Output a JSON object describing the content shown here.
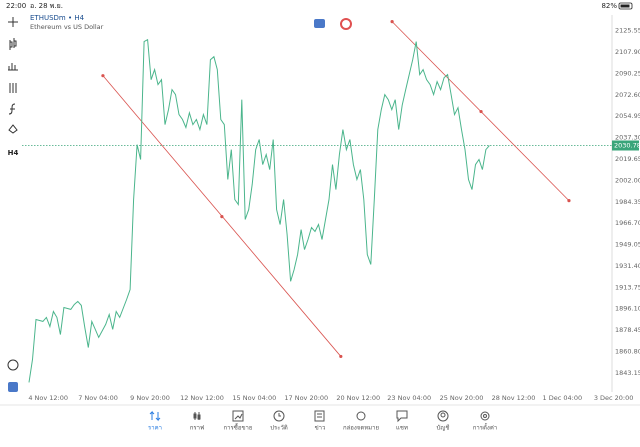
{
  "status_bar": {
    "time": "22:00",
    "date": "อ. 28 พ.ย.",
    "battery": "82%"
  },
  "side_toolbar": {
    "timeframe": "H4"
  },
  "tabs": [
    "ราคา",
    "กราฟ",
    "การซื้อขาย",
    "ประวัติ",
    "ข่าว",
    "กล่องจดหมาย",
    "แชท",
    "บัญชี",
    "การตั้งค่า"
  ],
  "chart_data": {
    "type": "line",
    "title": "ETHUSDm • H4",
    "subtitle": "Ethereum vs US Dollar",
    "x": [
      0,
      1,
      2,
      4,
      5,
      6,
      7,
      8,
      9,
      10,
      12,
      13,
      14,
      15,
      16,
      17,
      18,
      19,
      20,
      22,
      23,
      24,
      25,
      26,
      28,
      29,
      30,
      31,
      32,
      33,
      34,
      35,
      36,
      37,
      38,
      39,
      40,
      41,
      42,
      43,
      44,
      45,
      46,
      47,
      48,
      49,
      50,
      51,
      52,
      53,
      54,
      55,
      56,
      57,
      58,
      59,
      60,
      61,
      62,
      63,
      64,
      65,
      66,
      67,
      68,
      69,
      70,
      71,
      72,
      73,
      74,
      75,
      76,
      77,
      78,
      79,
      80,
      81,
      82,
      83,
      84,
      85,
      86,
      87,
      88,
      89,
      90,
      91,
      92,
      93,
      94,
      95,
      96,
      97,
      98,
      99,
      100,
      101,
      102,
      103,
      104,
      105,
      106,
      107,
      108,
      109,
      110,
      111,
      112,
      113,
      114,
      115,
      116,
      117,
      118,
      119,
      120,
      121,
      122,
      123,
      124,
      125,
      126,
      127,
      128,
      129,
      130,
      131,
      132
    ],
    "series": [
      {
        "name": "ETHUSDm",
        "color": "#4bb58c",
        "values": [
          1835.3,
          1854.2,
          1887.2,
          1885.6,
          1888.9,
          1881.4,
          1893.8,
          1888.9,
          1874.8,
          1897.1,
          1895.5,
          1899.6,
          1902.1,
          1898.8,
          1880.6,
          1864.1,
          1885.6,
          1879.0,
          1872.4,
          1883.1,
          1891.3,
          1879.0,
          1893.8,
          1888.9,
          1903.7,
          1911.9,
          1986.2,
          2031.5,
          2019.2,
          2116.5,
          2118.1,
          2085.1,
          2093.4,
          2081.0,
          2085.1,
          2048.0,
          2060.4,
          2076.9,
          2072.8,
          2056.3,
          2052.2,
          2045.6,
          2057.8,
          2048.0,
          2052.2,
          2043.9,
          2056.3,
          2048.0,
          2101.6,
          2104.1,
          2093.4,
          2052.2,
          2048.0,
          2002.7,
          2027.4,
          1986.2,
          1982.1,
          2068.6,
          1969.7,
          1977.9,
          1998.6,
          2027.4,
          2035.7,
          2015.0,
          2023.3,
          2010.9,
          2035.7,
          1977.9,
          1965.6,
          1986.2,
          1957.3,
          1918.6,
          1928.4,
          1940.8,
          1961.4,
          1944.9,
          1953.2,
          1963.1,
          1959.8,
          1965.6,
          1953.2,
          1969.7,
          1986.2,
          2015.0,
          1994.4,
          2023.3,
          2043.9,
          2027.4,
          2035.7,
          2015.0,
          2002.7,
          2010.9,
          1986.2,
          1940.8,
          1932.6,
          1986.2,
          2043.9,
          2060.4,
          2072.8,
          2068.6,
          2060.4,
          2068.6,
          2043.9,
          2064.0,
          2076.9,
          2089.3,
          2101.6,
          2116.5,
          2089.3,
          2093.4,
          2085.1,
          2081.0,
          2072.8,
          2083.5,
          2076.9,
          2086.8,
          2089.3,
          2072.8,
          2056.3,
          2062.0,
          2043.9,
          2027.4,
          2002.7,
          1994.4,
          2015.0,
          2019.2,
          2010.9,
          2027.4,
          2030.7
        ]
      }
    ],
    "xlim": [
      -2,
      168
    ],
    "xticks": [
      {
        "value": 5.5,
        "label": "4 Nov 12:00"
      },
      {
        "value": 19.8,
        "label": "7 Nov 04:00"
      },
      {
        "value": 34.7,
        "label": "9 Nov 20:00"
      },
      {
        "value": 49.6,
        "label": "12 Nov 12:00"
      },
      {
        "value": 64.6,
        "label": "15 Nov 04:00"
      },
      {
        "value": 79.5,
        "label": "17 Nov 20:00"
      },
      {
        "value": 94.4,
        "label": "20 Nov 12:00"
      },
      {
        "value": 109.0,
        "label": "23 Nov 04:00"
      },
      {
        "value": 124.0,
        "label": "25 Nov 20:00"
      },
      {
        "value": 138.9,
        "label": "28 Nov 12:00"
      },
      {
        "value": 152.9,
        "label": "1 Dec 04:00"
      },
      {
        "value": 167.6,
        "label": "3 Dec 20:00"
      }
    ],
    "ylim": [
      1829,
      2136
    ],
    "yticks": [
      2125.55,
      {
        "value": 2107.9,
        "label": "2107.90"
      },
      2090.25,
      {
        "value": 2072.6,
        "label": "2072.60"
      },
      2054.95,
      {
        "value": 2037.3,
        "label": "2037.30"
      },
      2019.65,
      {
        "value": 2002,
        "label": "2002.00"
      },
      1984.35,
      {
        "value": 1966.7,
        "label": "1966.70"
      },
      1949.05,
      {
        "value": 1931.4,
        "label": "1931.40"
      },
      1913.75,
      {
        "value": 1896.1,
        "label": "1896.10"
      },
      1878.45,
      {
        "value": 1860.8,
        "label": "1860.80"
      },
      1843.15
    ],
    "grid": false,
    "current_price": 2030.78,
    "current_price_color": "#3aa57a",
    "trendline_color": "#d9534f",
    "trendlines": [
      {
        "x": [
          21.2,
          55.3,
          89.4
        ],
        "y": [
          2088.4,
          1972.1,
          1856.7
        ]
      },
      {
        "x": [
          104.1,
          129.6,
          154.8
        ],
        "y": [
          2133.0,
          2058.8,
          1985.3
        ]
      }
    ]
  }
}
